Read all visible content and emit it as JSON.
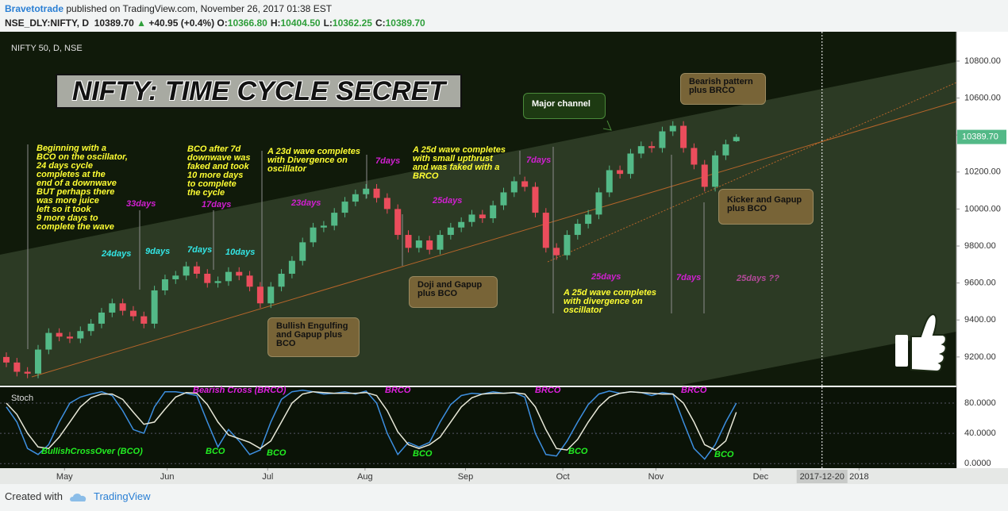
{
  "header": {
    "author": "Bravetotrade",
    "published": "published on TradingView.com, November 26, 2017 01:38 EST",
    "symbol": "NSE_DLY:NIFTY, D",
    "price": "10389.70",
    "change": "+40.95 (+0.4%)",
    "ohlc": [
      [
        "O:",
        "10366.80"
      ],
      [
        "H:",
        "10404.50"
      ],
      [
        "L:",
        "10362.25"
      ],
      [
        "C:",
        "10389.70"
      ]
    ]
  },
  "footer": {
    "text": "Created with",
    "brand": "TradingView"
  },
  "chart_data": {
    "type": "candlestick",
    "title": "NIFTY 50, D, NSE",
    "headline": "NIFTY: TIME CYCLE SECRET",
    "up_color": "#53b987",
    "down_color": "#eb4d5c",
    "xlim": [
      -0.6,
      89.8
    ],
    "xticks": [
      {
        "value": 5.5,
        "label": "May"
      },
      {
        "value": 15.2,
        "label": "Jun"
      },
      {
        "value": 24.7,
        "label": "Jul"
      },
      {
        "value": 33.9,
        "label": "Aug"
      },
      {
        "value": 43.4,
        "label": "Sep"
      },
      {
        "value": 52.6,
        "label": "Oct"
      },
      {
        "value": 61.4,
        "label": "Nov"
      },
      {
        "value": 71.3,
        "label": "Dec"
      },
      {
        "value": 80.6,
        "label": "2018"
      }
    ],
    "crosshair": {
      "value": 77.1,
      "label": "2017-12-20"
    },
    "ylim": [
      9045,
      10950
    ],
    "yticks": [
      {
        "value": 9200,
        "label": "9200.00"
      },
      {
        "value": 9400,
        "label": "9400.00"
      },
      {
        "value": 9600,
        "label": "9600.00"
      },
      {
        "value": 9800,
        "label": "9800.00"
      },
      {
        "value": 10000,
        "label": "10000.00"
      },
      {
        "value": 10200,
        "label": "10200.00"
      },
      {
        "value": 10400,
        "label": "10400.00"
      },
      {
        "value": 10600,
        "label": "10600.00"
      },
      {
        "value": 10800,
        "label": "10800.00"
      }
    ],
    "open": [
      9200,
      9170,
      9120,
      9110,
      9240,
      9330,
      9310,
      9300,
      9340,
      9380,
      9440,
      9490,
      9450,
      9420,
      9380,
      9560,
      9620,
      9640,
      9690,
      9650,
      9600,
      9610,
      9660,
      9640,
      9580,
      9490,
      9580,
      9650,
      9720,
      9820,
      9900,
      9910,
      9980,
      10040,
      10080,
      10110,
      10060,
      10000,
      9860,
      9790,
      9830,
      9780,
      9860,
      9900,
      9930,
      9970,
      9950,
      10020,
      10090,
      10150,
      10120,
      9980,
      9790,
      9750,
      9860,
      9920,
      9970,
      10090,
      10210,
      10190,
      10300,
      10340,
      10330,
      10420,
      10450,
      10330,
      10240,
      10120,
      10290,
      10366.8
    ],
    "high": [
      9225,
      9195,
      9145,
      9265,
      9355,
      9355,
      9335,
      9365,
      9405,
      9465,
      9515,
      9515,
      9475,
      9445,
      9585,
      9645,
      9665,
      9715,
      9715,
      9675,
      9635,
      9685,
      9685,
      9665,
      9605,
      9605,
      9675,
      9745,
      9845,
      9925,
      9935,
      10005,
      10065,
      10105,
      10135,
      10135,
      10085,
      10025,
      9885,
      9855,
      9855,
      9885,
      9925,
      9955,
      9995,
      9995,
      10045,
      10115,
      10175,
      10175,
      10145,
      10005,
      9815,
      9885,
      9945,
      9995,
      10115,
      10235,
      10235,
      10325,
      10365,
      10365,
      10445,
      10475,
      10475,
      10355,
      10265,
      10315,
      10375,
      10404.5
    ],
    "low": [
      9145,
      9095,
      9085,
      9085,
      9215,
      9285,
      9275,
      9275,
      9315,
      9355,
      9415,
      9425,
      9395,
      9355,
      9355,
      9535,
      9595,
      9615,
      9625,
      9575,
      9575,
      9585,
      9615,
      9555,
      9465,
      9465,
      9555,
      9625,
      9695,
      9795,
      9875,
      9885,
      9955,
      10015,
      10055,
      10035,
      9975,
      9835,
      9765,
      9765,
      9755,
      9755,
      9835,
      9875,
      9905,
      9925,
      9925,
      9995,
      10065,
      10095,
      9955,
      9765,
      9725,
      9725,
      9835,
      9895,
      9945,
      10065,
      10165,
      10165,
      10275,
      10305,
      10305,
      10395,
      10305,
      10215,
      10095,
      10095,
      10265,
      10362.25
    ],
    "close": [
      9170,
      9120,
      9110,
      9240,
      9330,
      9310,
      9300,
      9340,
      9380,
      9440,
      9490,
      9450,
      9420,
      9380,
      9560,
      9620,
      9640,
      9690,
      9650,
      9600,
      9610,
      9660,
      9640,
      9580,
      9490,
      9580,
      9650,
      9720,
      9820,
      9900,
      9910,
      9980,
      10040,
      10080,
      10110,
      10060,
      10000,
      9860,
      9790,
      9830,
      9780,
      9860,
      9900,
      9930,
      9970,
      9950,
      10020,
      10090,
      10150,
      10120,
      9980,
      9790,
      9750,
      9860,
      9920,
      9970,
      10090,
      10210,
      10190,
      10300,
      10340,
      10330,
      10420,
      10450,
      10330,
      10240,
      10120,
      10290,
      10350,
      10389.7
    ],
    "last_price": {
      "value": 10389.7,
      "label": "10389.70",
      "color": "#53b987"
    },
    "annotations": [
      {
        "text": "Beginning with a\nBCO on the oscillator,\n24 days cycle\ncompletes at the\nend of a downwave\nBUT perhaps there\nwas more juice\nleft so it took\n9 more days to\ncomplete the wave",
        "color": "#ffff33"
      },
      {
        "text": "BCO after 7d\ndownwave was\nfaked and took\n10 more days\nto complete\nthe cycle",
        "color": "#ffff33"
      },
      {
        "text": "A 23d wave completes\nwith Divergence on\noscillator",
        "color": "#ffff33"
      },
      {
        "text": "A 25d wave completes\nwith small upthrust\nand was faked with a\nBRCO",
        "color": "#ffff33"
      },
      {
        "text": "A 25d wave completes\nwith divergence on\noscillator",
        "color": "#ffff33"
      },
      {
        "text": "24days",
        "color": "#33e6e6"
      },
      {
        "text": "9days",
        "color": "#33e6e6"
      },
      {
        "text": "7days",
        "color": "#33e6e6"
      },
      {
        "text": "10days",
        "color": "#33e6e6"
      },
      {
        "text": "33days",
        "color": "#d21fd2"
      },
      {
        "text": "17days",
        "color": "#d21fd2"
      },
      {
        "text": "23days",
        "color": "#d21fd2"
      },
      {
        "text": "7days",
        "color": "#d21fd2"
      },
      {
        "text": "25days",
        "color": "#d21fd2"
      },
      {
        "text": "7days",
        "color": "#d21fd2"
      },
      {
        "text": "25days",
        "color": "#d21fd2"
      },
      {
        "text": "7days",
        "color": "#d21fd2"
      },
      {
        "text": "25days ??",
        "color": "#b44a9a"
      },
      {
        "text": "Bullish Engulfing\nand Gapup plus\nBCO",
        "color": "#111111",
        "background": "#786437"
      },
      {
        "text": "Doji and Gapup\nplus BCO",
        "color": "#111111",
        "background": "#786437"
      },
      {
        "text": "Bearish pattern\nplus BRCO",
        "color": "#111111",
        "background": "#786437"
      },
      {
        "text": "Kicker and Gapup\nplus BCO",
        "color": "#111111",
        "background": "#786437"
      },
      {
        "text": "Major channel",
        "color": "#ffffff",
        "background": "#1d3a12"
      }
    ],
    "oscillator": {
      "type": "line",
      "title": "Stoch",
      "ylim": [
        -6,
        101
      ],
      "yticks": [
        {
          "value": 0,
          "label": "0.0000"
        },
        {
          "value": 40,
          "label": "40.0000"
        },
        {
          "value": 80,
          "label": "80.0000"
        }
      ],
      "series": [
        {
          "color": "#3d8fe0",
          "values": [
            75,
            55,
            20,
            12,
            25,
            55,
            80,
            88,
            92,
            95,
            90,
            70,
            45,
            40,
            75,
            95,
            95,
            93,
            90,
            55,
            22,
            45,
            30,
            12,
            18,
            55,
            85,
            95,
            97,
            95,
            92,
            93,
            95,
            92,
            96,
            80,
            40,
            12,
            28,
            22,
            28,
            55,
            78,
            90,
            93,
            92,
            95,
            93,
            94,
            88,
            40,
            12,
            10,
            30,
            55,
            78,
            92,
            96,
            93,
            95,
            94,
            90,
            94,
            92,
            55,
            20,
            6,
            25,
            55,
            80
          ]
        },
        {
          "color": "#e8e8d8",
          "values": [
            80,
            65,
            40,
            22,
            20,
            35,
            55,
            75,
            87,
            92,
            92,
            85,
            68,
            52,
            55,
            72,
            88,
            94,
            93,
            78,
            55,
            38,
            33,
            28,
            20,
            30,
            55,
            80,
            92,
            95,
            94,
            93,
            93,
            93,
            94,
            90,
            70,
            42,
            25,
            20,
            25,
            35,
            55,
            75,
            87,
            92,
            93,
            93,
            94,
            92,
            75,
            45,
            20,
            18,
            32,
            55,
            75,
            88,
            93,
            95,
            94,
            93,
            92,
            92,
            80,
            55,
            25,
            18,
            30,
            68
          ]
        }
      ],
      "annotations": [
        {
          "text": "Bearish Cross (BRCO)",
          "color": "#e020e0"
        },
        {
          "text": "BRCO",
          "color": "#e020e0"
        },
        {
          "text": "BRCO",
          "color": "#e020e0"
        },
        {
          "text": "BRCO",
          "color": "#e020e0"
        },
        {
          "text": "BullishCrossOver (BCO)",
          "color": "#22ee22"
        },
        {
          "text": "BCO",
          "color": "#22ee22"
        },
        {
          "text": "BCO",
          "color": "#22ee22"
        },
        {
          "text": "BCO",
          "color": "#22ee22"
        },
        {
          "text": "BCO",
          "color": "#22ee22"
        },
        {
          "text": "BCO",
          "color": "#22ee22"
        }
      ]
    }
  }
}
